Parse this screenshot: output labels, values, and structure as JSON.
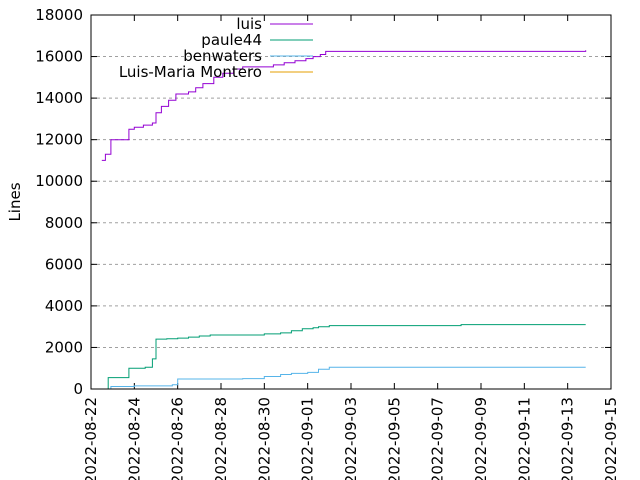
{
  "chart_data": {
    "type": "line",
    "title": "",
    "xlabel": "",
    "ylabel": "Lines",
    "x_axis_type": "date",
    "xlim": [
      "2022-08-22",
      "2022-09-15"
    ],
    "ylim": [
      0,
      18000
    ],
    "y_ticks": [
      0,
      2000,
      4000,
      6000,
      8000,
      10000,
      12000,
      14000,
      16000,
      18000
    ],
    "x_ticks": [
      "2022-08-22",
      "2022-08-24",
      "2022-08-26",
      "2022-08-28",
      "2022-08-30",
      "2022-09-01",
      "2022-09-03",
      "2022-09-05",
      "2022-09-07",
      "2022-09-09",
      "2022-09-11",
      "2022-09-13",
      "2022-09-15"
    ],
    "grid": "horizontal dashed",
    "legend_position": "top-center",
    "series": [
      {
        "name": "luis",
        "color": "#9400d3",
        "points": [
          [
            "2022-08-22 12:00",
            11000
          ],
          [
            "2022-08-22 16:00",
            11300
          ],
          [
            "2022-08-22 22:00",
            12000
          ],
          [
            "2022-08-23 15:00",
            12000
          ],
          [
            "2022-08-23 18:00",
            12500
          ],
          [
            "2022-08-24 00:00",
            12600
          ],
          [
            "2022-08-24 10:00",
            12700
          ],
          [
            "2022-08-24 20:00",
            12800
          ],
          [
            "2022-08-25 00:00",
            13300
          ],
          [
            "2022-08-25 06:00",
            13600
          ],
          [
            "2022-08-25 14:00",
            13900
          ],
          [
            "2022-08-25 22:00",
            14200
          ],
          [
            "2022-08-26 12:00",
            14300
          ],
          [
            "2022-08-26 20:00",
            14500
          ],
          [
            "2022-08-27 04:00",
            14700
          ],
          [
            "2022-08-27 16:00",
            15000
          ],
          [
            "2022-08-28 02:00",
            15200
          ],
          [
            "2022-08-28 14:00",
            15400
          ],
          [
            "2022-08-29 00:00",
            15500
          ],
          [
            "2022-08-30 00:00",
            15500
          ],
          [
            "2022-08-30 10:00",
            15600
          ],
          [
            "2022-08-30 22:00",
            15700
          ],
          [
            "2022-08-31 10:00",
            15800
          ],
          [
            "2022-08-31 22:00",
            15900
          ],
          [
            "2022-09-01 06:00",
            16000
          ],
          [
            "2022-09-01 14:00",
            16100
          ],
          [
            "2022-09-01 20:00",
            16250
          ],
          [
            "2022-09-03 00:00",
            16250
          ],
          [
            "2022-09-13 00:00",
            16250
          ],
          [
            "2022-09-13 20:00",
            16300
          ]
        ]
      },
      {
        "name": "paule44",
        "color": "#009e73",
        "points": [
          [
            "2022-08-22 18:00",
            0
          ],
          [
            "2022-08-22 19:00",
            550
          ],
          [
            "2022-08-23 15:00",
            550
          ],
          [
            "2022-08-23 18:00",
            1000
          ],
          [
            "2022-08-24 12:00",
            1050
          ],
          [
            "2022-08-24 20:00",
            1450
          ],
          [
            "2022-08-25 00:00",
            2400
          ],
          [
            "2022-08-25 12:00",
            2420
          ],
          [
            "2022-08-26 00:00",
            2450
          ],
          [
            "2022-08-26 12:00",
            2500
          ],
          [
            "2022-08-27 00:00",
            2550
          ],
          [
            "2022-08-27 12:00",
            2600
          ],
          [
            "2022-08-29 00:00",
            2600
          ],
          [
            "2022-08-30 00:00",
            2650
          ],
          [
            "2022-08-30 18:00",
            2700
          ],
          [
            "2022-08-31 06:00",
            2800
          ],
          [
            "2022-08-31 18:00",
            2900
          ],
          [
            "2022-09-01 06:00",
            2950
          ],
          [
            "2022-09-01 12:00",
            3000
          ],
          [
            "2022-09-02 00:00",
            3050
          ],
          [
            "2022-09-08 00:00",
            3050
          ],
          [
            "2022-09-08 02:00",
            3100
          ],
          [
            "2022-09-13 20:00",
            3100
          ]
        ]
      },
      {
        "name": "benwaters",
        "color": "#56b4e9",
        "points": [
          [
            "2022-08-22 18:00",
            0
          ],
          [
            "2022-08-22 22:00",
            120
          ],
          [
            "2022-08-24 00:00",
            150
          ],
          [
            "2022-08-25 18:00",
            200
          ],
          [
            "2022-08-26 00:00",
            480
          ],
          [
            "2022-08-29 00:00",
            500
          ],
          [
            "2022-08-30 00:00",
            600
          ],
          [
            "2022-08-30 18:00",
            700
          ],
          [
            "2022-08-31 06:00",
            750
          ],
          [
            "2022-09-01 00:00",
            800
          ],
          [
            "2022-09-01 12:00",
            950
          ],
          [
            "2022-09-02 00:00",
            1050
          ],
          [
            "2022-09-13 20:00",
            1050
          ]
        ]
      },
      {
        "name": "Luis-Maria Montero",
        "color": "#e69f00",
        "points": []
      }
    ]
  }
}
